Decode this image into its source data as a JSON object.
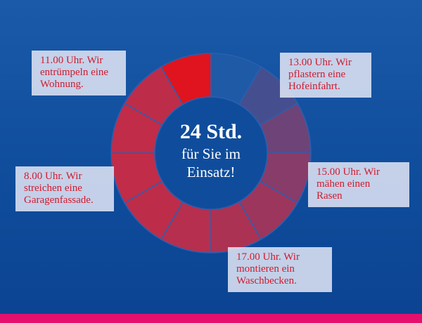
{
  "center": {
    "headline": "24 Std.",
    "line1": "für Sie im",
    "line2": "Einsatz!"
  },
  "notes": [
    {
      "lines": [
        "11.00 Uhr. Wir",
        "entrümpeln eine",
        "Wohnung."
      ]
    },
    {
      "lines": [
        "13.00 Uhr. Wir",
        "pflastern eine",
        "Hofeinfahrt."
      ]
    },
    {
      "lines": [
        "8.00 Uhr. Wir",
        "streichen eine",
        "Garagenfassade."
      ]
    },
    {
      "lines": [
        "15.00 Uhr. Wir",
        "mähen einen",
        "Rasen"
      ]
    },
    {
      "lines": [
        "17.00 Uhr. Wir",
        "montieren ein",
        "Waschbecken."
      ]
    }
  ],
  "ring": {
    "segment_count": 12,
    "highlight_color": "#e0141e",
    "warm_color": "#cf2840",
    "cool_color": "#1e5aa6",
    "divider_color": "#2a5fb0"
  },
  "colors": {
    "background": "#0f4d9c",
    "note_text": "#d21a2c",
    "bottom_bar": "#e5106e"
  }
}
